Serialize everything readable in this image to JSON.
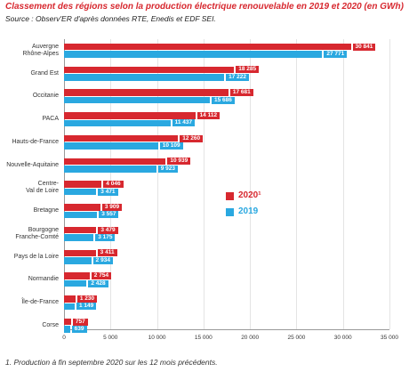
{
  "chart_data": {
    "type": "hbar",
    "title": "Classement des régions selon la production électrique renouvelable en 2019 et 2020 (en GWh)",
    "subtitle": "Source : Observ'ER d'après données RTE, Enedis et EDF SEI.",
    "categories": [
      "Auvergne\nRhône-Alpes",
      "Grand Est",
      "Occitanie",
      "PACA",
      "Hauts-de-France",
      "Nouvelle-Aquitaine",
      "Centre-\nVal de Loire",
      "Bretagne",
      "Bourgogne\nFranche-Comté",
      "Pays de la Loire",
      "Normandie",
      "Île-de-France",
      "Corse"
    ],
    "series": [
      {
        "name": "2020¹",
        "color": "#d7282f",
        "values": [
          30841,
          18285,
          17681,
          14112,
          12260,
          10939,
          4046,
          3909,
          3479,
          3411,
          2754,
          1230,
          757
        ],
        "value_labels": [
          "30 841",
          "18 285",
          "17 681",
          "14 112",
          "12 260",
          "10 939",
          "4 046",
          "3 909",
          "3 479",
          "3 411",
          "2 754",
          "1 230",
          "757"
        ]
      },
      {
        "name": "2019",
        "color": "#2aa8e0",
        "values": [
          27771,
          17222,
          15686,
          11437,
          10109,
          9923,
          3471,
          3557,
          3175,
          2934,
          2428,
          1149,
          639
        ],
        "value_labels": [
          "27 771",
          "17 222",
          "15 686",
          "11 437",
          "10 109",
          "9 923",
          "3 471",
          "3 557",
          "3 175",
          "2 934",
          "2 428",
          "1 149",
          "639"
        ]
      }
    ],
    "xlim": [
      0,
      35000
    ],
    "xticks": [
      0,
      {
        "value": 5000,
        "label": "5 000"
      },
      {
        "value": 10000,
        "label": "10 000"
      },
      {
        "value": 15000,
        "label": "15 000"
      },
      {
        "value": 20000,
        "label": "20 000"
      },
      {
        "value": 25000,
        "label": "25 000"
      },
      {
        "value": 30000,
        "label": "30 000"
      },
      {
        "value": 35000,
        "label": "35 000"
      }
    ],
    "grid": true,
    "footnote": "1. Production à fin septembre 2020 sur les 12 mois précédents."
  }
}
